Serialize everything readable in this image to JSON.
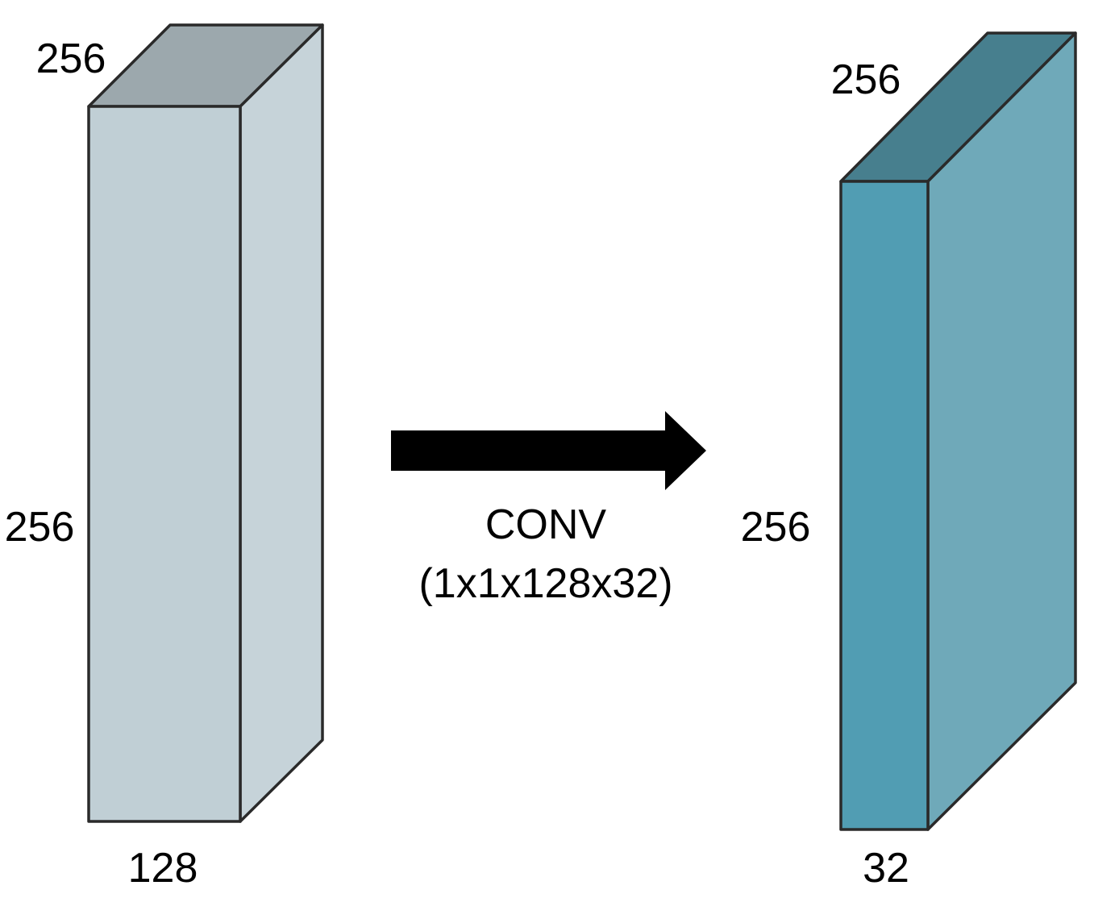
{
  "input_block": {
    "depth_label": "256",
    "height_label": "256",
    "width_label": "128",
    "colors": {
      "front": "#c0cfd5",
      "side": "#c6d3d9",
      "top": "#9ca8ad"
    }
  },
  "operation": {
    "name": "CONV",
    "kernel": "(1x1x128x32)",
    "arrow_color": "#000000"
  },
  "output_block": {
    "depth_label": "256",
    "height_label": "256",
    "width_label": "32",
    "colors": {
      "front": "#519db3",
      "side": "#6fa9b9",
      "top": "#477f8e"
    }
  }
}
